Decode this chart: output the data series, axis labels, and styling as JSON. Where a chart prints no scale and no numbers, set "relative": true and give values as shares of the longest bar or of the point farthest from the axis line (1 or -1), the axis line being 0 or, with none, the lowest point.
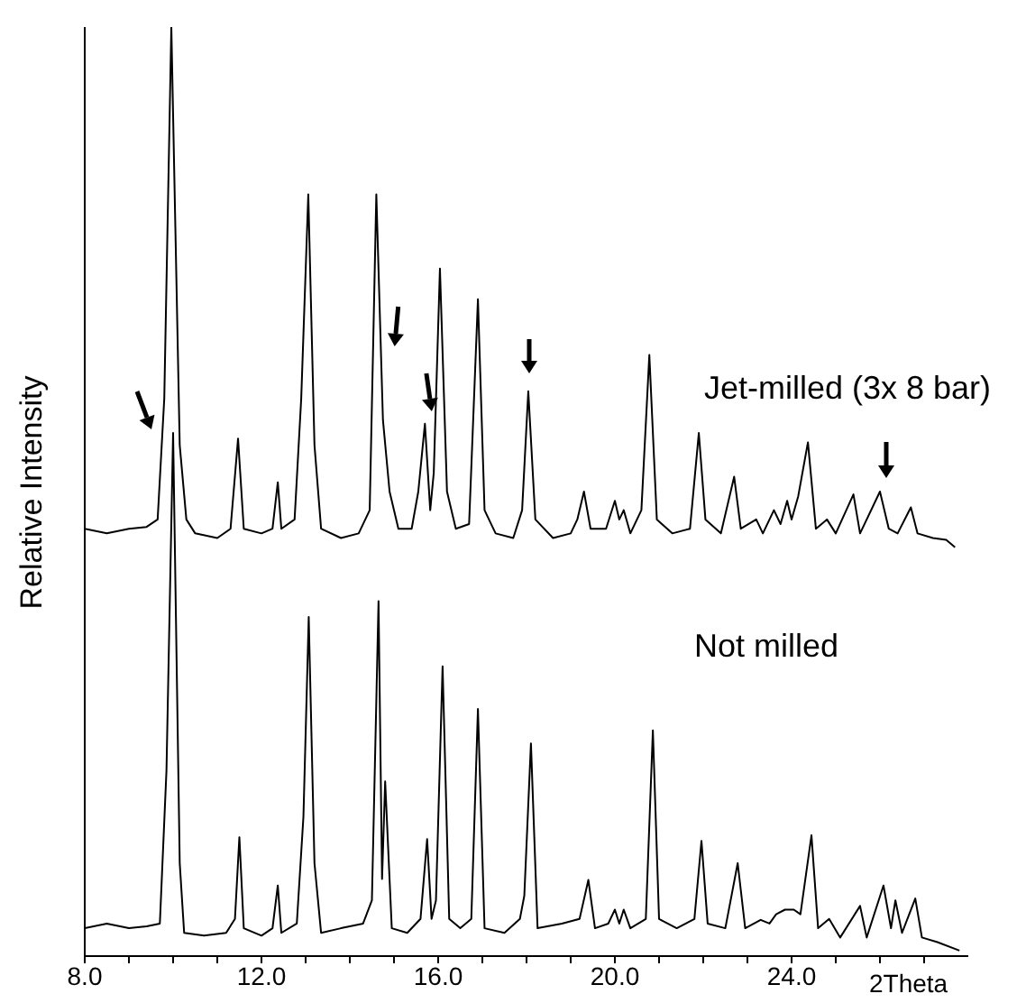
{
  "chart_data": {
    "type": "line",
    "relative": true,
    "ylabel": "Relative Intensity",
    "xlabel": "2Theta",
    "xlim": [
      8,
      28
    ],
    "xticks": [
      {
        "value": 8,
        "label": "8.0"
      },
      {
        "value": 9,
        "label": null
      },
      {
        "value": 10,
        "label": null
      },
      {
        "value": 11,
        "label": null
      },
      {
        "value": 12,
        "label": "12.0"
      },
      {
        "value": 13,
        "label": null
      },
      {
        "value": 14,
        "label": null
      },
      {
        "value": 15,
        "label": null
      },
      {
        "value": 16,
        "label": "16.0"
      },
      {
        "value": 17,
        "label": null
      },
      {
        "value": 18,
        "label": null
      },
      {
        "value": 19,
        "label": null
      },
      {
        "value": 20,
        "label": "20.0"
      },
      {
        "value": 21,
        "label": null
      },
      {
        "value": 22,
        "label": null
      },
      {
        "value": 23,
        "label": null
      },
      {
        "value": 24,
        "label": "24.0"
      },
      {
        "value": 25,
        "label": null
      },
      {
        "value": 26,
        "label": null
      },
      {
        "value": 27,
        "label": null
      }
    ],
    "tick_labels": "x",
    "legend": false,
    "marker": "none",
    "line_style": "solid",
    "series": [
      {
        "name": "Jet-milled (3x 8 bar)",
        "color": "#000000",
        "x": [
          8.0,
          8.5,
          9.0,
          9.4,
          9.65,
          9.8,
          9.96,
          10.15,
          10.3,
          10.5,
          11.0,
          11.3,
          11.47,
          11.6,
          12.0,
          12.25,
          12.37,
          12.45,
          12.75,
          12.9,
          13.06,
          13.2,
          13.35,
          13.8,
          14.2,
          14.45,
          14.6,
          14.75,
          14.9,
          15.1,
          15.4,
          15.55,
          15.7,
          15.82,
          15.9,
          16.04,
          16.2,
          16.4,
          16.7,
          16.9,
          17.05,
          17.3,
          17.7,
          17.9,
          18.04,
          18.2,
          18.6,
          19.0,
          19.15,
          19.3,
          19.45,
          19.8,
          20.0,
          20.1,
          20.2,
          20.35,
          20.6,
          20.78,
          20.95,
          21.3,
          21.7,
          21.9,
          22.05,
          22.4,
          22.7,
          22.85,
          23.2,
          23.35,
          23.6,
          23.75,
          23.9,
          24.0,
          24.15,
          24.37,
          24.55,
          24.8,
          25.0,
          25.4,
          25.55,
          26.0,
          26.2,
          26.4,
          26.7,
          26.85,
          27.2,
          27.5,
          27.7
        ],
        "values": [
          0.46,
          0.455,
          0.46,
          0.462,
          0.47,
          0.6,
          1.0,
          0.55,
          0.47,
          0.455,
          0.45,
          0.46,
          0.557,
          0.46,
          0.455,
          0.46,
          0.51,
          0.46,
          0.47,
          0.6,
          0.82,
          0.55,
          0.46,
          0.45,
          0.455,
          0.48,
          0.82,
          0.577,
          0.5,
          0.46,
          0.46,
          0.5,
          0.573,
          0.48,
          0.52,
          0.74,
          0.5,
          0.46,
          0.465,
          0.707,
          0.48,
          0.455,
          0.45,
          0.48,
          0.608,
          0.47,
          0.45,
          0.455,
          0.47,
          0.5,
          0.46,
          0.46,
          0.49,
          0.47,
          0.48,
          0.455,
          0.48,
          0.647,
          0.47,
          0.455,
          0.46,
          0.563,
          0.47,
          0.455,
          0.516,
          0.46,
          0.47,
          0.455,
          0.48,
          0.465,
          0.49,
          0.47,
          0.495,
          0.553,
          0.46,
          0.47,
          0.455,
          0.497,
          0.455,
          0.5,
          0.46,
          0.455,
          0.483,
          0.455,
          0.45,
          0.448,
          0.44
        ]
      },
      {
        "name": "Not milled",
        "color": "#000000",
        "x": [
          8.0,
          8.5,
          9.0,
          9.4,
          9.7,
          9.85,
          10.0,
          10.15,
          10.25,
          10.7,
          11.2,
          11.4,
          11.5,
          11.6,
          12.0,
          12.25,
          12.37,
          12.45,
          12.8,
          12.95,
          13.07,
          13.2,
          13.35,
          13.8,
          14.3,
          14.5,
          14.65,
          14.73,
          14.8,
          14.95,
          15.3,
          15.6,
          15.75,
          15.85,
          15.95,
          16.1,
          16.25,
          16.5,
          16.75,
          16.9,
          17.05,
          17.5,
          17.85,
          17.95,
          18.1,
          18.25,
          18.8,
          19.2,
          19.4,
          19.55,
          19.85,
          20.0,
          20.1,
          20.2,
          20.35,
          20.7,
          20.86,
          21.0,
          21.4,
          21.8,
          21.96,
          22.1,
          22.5,
          22.78,
          22.95,
          23.3,
          23.5,
          23.65,
          23.85,
          24.05,
          24.2,
          24.45,
          24.6,
          24.85,
          25.1,
          25.55,
          25.7,
          26.08,
          26.25,
          26.35,
          26.5,
          26.8,
          26.95,
          27.3,
          27.8
        ],
        "values": [
          0.03,
          0.035,
          0.03,
          0.032,
          0.035,
          0.2,
          0.563,
          0.1,
          0.025,
          0.022,
          0.025,
          0.04,
          0.128,
          0.03,
          0.022,
          0.03,
          0.076,
          0.025,
          0.035,
          0.15,
          0.365,
          0.1,
          0.025,
          0.03,
          0.035,
          0.06,
          0.382,
          0.083,
          0.188,
          0.03,
          0.025,
          0.04,
          0.126,
          0.04,
          0.06,
          0.312,
          0.04,
          0.03,
          0.04,
          0.266,
          0.03,
          0.025,
          0.04,
          0.065,
          0.229,
          0.03,
          0.035,
          0.04,
          0.082,
          0.03,
          0.035,
          0.05,
          0.035,
          0.05,
          0.03,
          0.04,
          0.243,
          0.04,
          0.03,
          0.04,
          0.124,
          0.035,
          0.03,
          0.1,
          0.03,
          0.039,
          0.035,
          0.045,
          0.05,
          0.05,
          0.045,
          0.13,
          0.03,
          0.04,
          0.02,
          0.054,
          0.02,
          0.076,
          0.03,
          0.06,
          0.025,
          0.062,
          0.02,
          0.015,
          0.006
        ]
      }
    ]
  }
}
